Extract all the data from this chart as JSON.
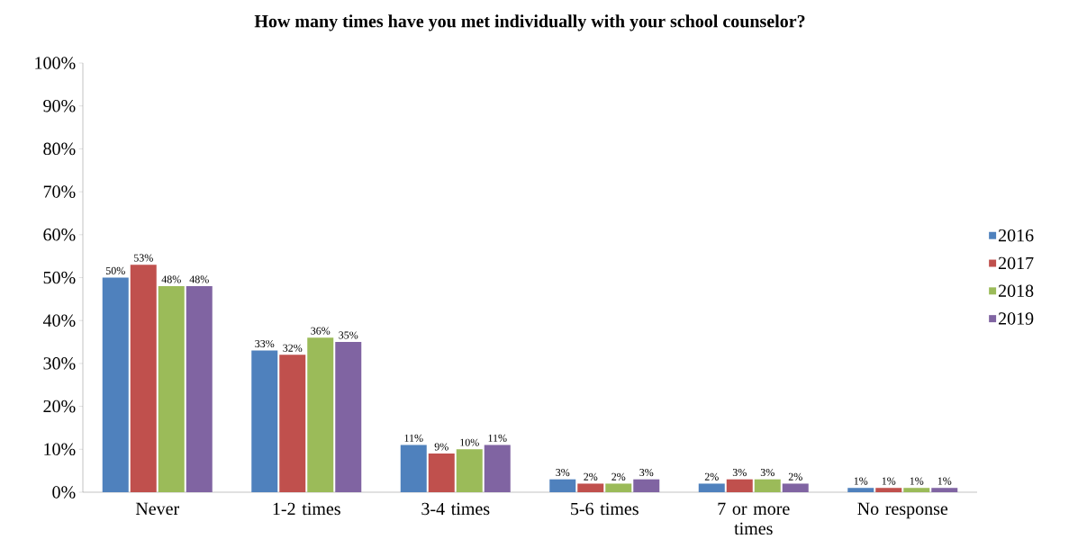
{
  "chart_data": {
    "type": "bar",
    "title": "How many times have you met individually with your school counselor?",
    "categories": [
      "Never",
      "1-2 times",
      "3-4 times",
      "5-6 times",
      "7 or more times",
      "No response"
    ],
    "series": [
      {
        "name": "2016",
        "color": "#4f81bd",
        "values": [
          50,
          33,
          11,
          3,
          2,
          1
        ],
        "value_labels": [
          "50%",
          "33%",
          "11%",
          "3%",
          "2%",
          "1%"
        ]
      },
      {
        "name": "2017",
        "color": "#c0504d",
        "values": [
          53,
          32,
          9,
          2,
          3,
          1
        ],
        "value_labels": [
          "53%",
          "32%",
          "9%",
          "2%",
          "3%",
          "1%"
        ]
      },
      {
        "name": "2018",
        "color": "#9bbb59",
        "values": [
          48,
          36,
          10,
          2,
          3,
          1
        ],
        "value_labels": [
          "48%",
          "36%",
          "10%",
          "2%",
          "3%",
          "1%"
        ]
      },
      {
        "name": "2019",
        "color": "#8064a2",
        "values": [
          48,
          35,
          11,
          3,
          2,
          1
        ],
        "value_labels": [
          "48%",
          "35%",
          "11%",
          "3%",
          "2%",
          "1%"
        ]
      }
    ],
    "ylim": [
      0,
      100
    ],
    "yticks": [
      {
        "value": 0,
        "label": "0%"
      },
      {
        "value": 10,
        "label": "10%"
      },
      {
        "value": 20,
        "label": "20%"
      },
      {
        "value": 30,
        "label": "30%"
      },
      {
        "value": 40,
        "label": "40%"
      },
      {
        "value": 50,
        "label": "50%"
      },
      {
        "value": 60,
        "label": "60%"
      },
      {
        "value": 70,
        "label": "70%"
      },
      {
        "value": 80,
        "label": "80%"
      },
      {
        "value": 90,
        "label": "90%"
      },
      {
        "value": 100,
        "label": "100%"
      }
    ],
    "legend": "right"
  }
}
